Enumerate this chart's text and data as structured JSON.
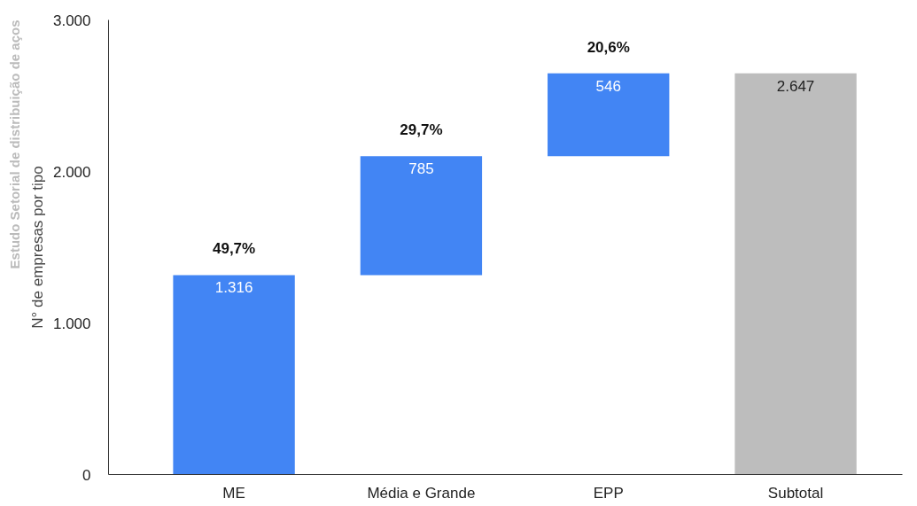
{
  "chart_data": {
    "type": "bar",
    "ylabel": "N° de empresas por tipo",
    "categories": [
      "ME",
      "Média e Grande",
      "EPP",
      "Subtotal"
    ],
    "values": [
      1316,
      785,
      546,
      2647
    ],
    "base": [
      0,
      1316,
      2101,
      0
    ],
    "colors": [
      "#4285f4",
      "#4285f4",
      "#4285f4",
      "#bdbdbd"
    ],
    "value_labels": [
      "1.316",
      "785",
      "546",
      "2.647"
    ],
    "ylim": [
      0,
      3000
    ],
    "yticks": [
      {
        "value": 0,
        "label": "0"
      },
      {
        "value": 1000,
        "label": "1.000"
      },
      {
        "value": 2000,
        "label": "2.000"
      },
      {
        "value": 3000,
        "label": "3.000"
      }
    ],
    "grid": false,
    "annotations": [
      {
        "text": "49,7%",
        "x": "ME",
        "y": 1316
      },
      {
        "text": "29,7%",
        "x": "Média e Grande",
        "y": 2101
      },
      {
        "text": "20,6%",
        "x": "EPP",
        "y": 2647
      },
      "Estudo Setorial de distribuição de aços"
    ]
  }
}
